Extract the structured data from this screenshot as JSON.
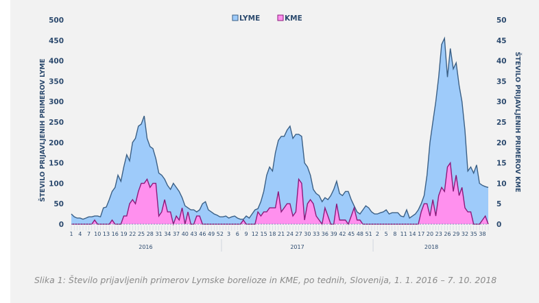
{
  "chart_data": {
    "type": "area",
    "legend_position": "top-center",
    "legend": [
      {
        "name": "LYME",
        "color": "#9ecbfa",
        "stroke": "#3a5f85"
      },
      {
        "name": "KME",
        "color": "#ff90ee",
        "stroke": "#8a1a7a"
      }
    ],
    "ylabel_left": "ŠTEVILO PRIJAVLJENIH PRIMEROV LYME",
    "ylabel_right": "ŠTEVILO PRIJAVLJENIH PRIMEROV KME",
    "ylim_left": [
      0,
      500
    ],
    "ylim_right": [
      0,
      50
    ],
    "yticks_left": [
      "0",
      "50",
      "100",
      "150",
      "200",
      "250",
      "300",
      "350",
      "400",
      "450",
      "500"
    ],
    "yticks_right": [
      "0",
      "5",
      "10",
      "15",
      "20",
      "25",
      "30",
      "35",
      "40",
      "45",
      "50"
    ],
    "years": [
      {
        "label": "2016",
        "weeks": 52
      },
      {
        "label": "2017",
        "weeks": 52
      },
      {
        "label": "2018",
        "weeks": 40
      }
    ],
    "week_tick_labels": [
      "1",
      "4",
      "7",
      "10",
      "13",
      "16",
      "19",
      "22",
      "25",
      "28",
      "31",
      "34",
      "37",
      "40",
      "43",
      "46",
      "49",
      "52",
      "3",
      "6",
      "9",
      "12",
      "15",
      "18",
      "21",
      "24",
      "27",
      "30",
      "33",
      "36",
      "39",
      "42",
      "45",
      "48",
      "51",
      "2",
      "5",
      "8",
      "11",
      "14",
      "17",
      "20",
      "23",
      "26",
      "29",
      "32",
      "35",
      "38"
    ],
    "series": [
      {
        "name": "LYME",
        "axis": "left",
        "values": [
          25,
          18,
          15,
          15,
          12,
          15,
          18,
          18,
          20,
          20,
          18,
          40,
          42,
          60,
          80,
          90,
          120,
          105,
          140,
          170,
          155,
          200,
          210,
          240,
          245,
          265,
          210,
          190,
          185,
          160,
          125,
          120,
          110,
          95,
          85,
          100,
          90,
          80,
          65,
          45,
          40,
          35,
          35,
          30,
          35,
          50,
          55,
          35,
          30,
          25,
          22,
          18,
          18,
          20,
          15,
          18,
          20,
          15,
          12,
          12,
          20,
          15,
          25,
          35,
          38,
          55,
          80,
          120,
          140,
          130,
          175,
          205,
          215,
          215,
          230,
          240,
          210,
          220,
          220,
          215,
          150,
          140,
          120,
          85,
          75,
          70,
          55,
          65,
          60,
          70,
          85,
          105,
          75,
          70,
          80,
          80,
          60,
          45,
          30,
          25,
          35,
          45,
          40,
          30,
          25,
          25,
          28,
          30,
          35,
          25,
          28,
          28,
          28,
          20,
          18,
          35,
          15,
          20,
          25,
          35,
          50,
          70,
          120,
          200,
          250,
          300,
          360,
          440,
          455,
          360,
          430,
          380,
          395,
          340,
          300,
          230,
          130,
          140,
          125,
          145,
          100,
          95,
          92,
          90
        ]
      },
      {
        "name": "KME",
        "axis": "right",
        "values": [
          0,
          0,
          0,
          0,
          0,
          0,
          0,
          0,
          1,
          0,
          0,
          0,
          0,
          0,
          1,
          0,
          0,
          0,
          2,
          2,
          5,
          6,
          5,
          8,
          10,
          10,
          11,
          9,
          10,
          10,
          2,
          3,
          6,
          3,
          3,
          0,
          2,
          1,
          4,
          0,
          3,
          0,
          0,
          2,
          2,
          0,
          0,
          0,
          0,
          0,
          0,
          0,
          0,
          0,
          0,
          0,
          0,
          0,
          0,
          1,
          0,
          0,
          0,
          0,
          3,
          2,
          3,
          3,
          4,
          4,
          4,
          8,
          3,
          4,
          5,
          5,
          2,
          3,
          11,
          10,
          1,
          5,
          6,
          5,
          2,
          1,
          0,
          4,
          2,
          0,
          0,
          5,
          1,
          1,
          1,
          0,
          2,
          4,
          1,
          1,
          0,
          0,
          0,
          0,
          0,
          0,
          0,
          0,
          0,
          0,
          0,
          0,
          0,
          0,
          0,
          0,
          0,
          0,
          0,
          0,
          3,
          5,
          5,
          2,
          6,
          2,
          7,
          9,
          8,
          14,
          15,
          8,
          12,
          7,
          9,
          4,
          3,
          3,
          0,
          0,
          0,
          1,
          2,
          0
        ]
      }
    ]
  },
  "caption": "Slika 1: Število prijavljenih primerov Lymske borelioze in KME, po tednih, Slovenija, 1. 1. 2016 – 7. 10. 2018"
}
